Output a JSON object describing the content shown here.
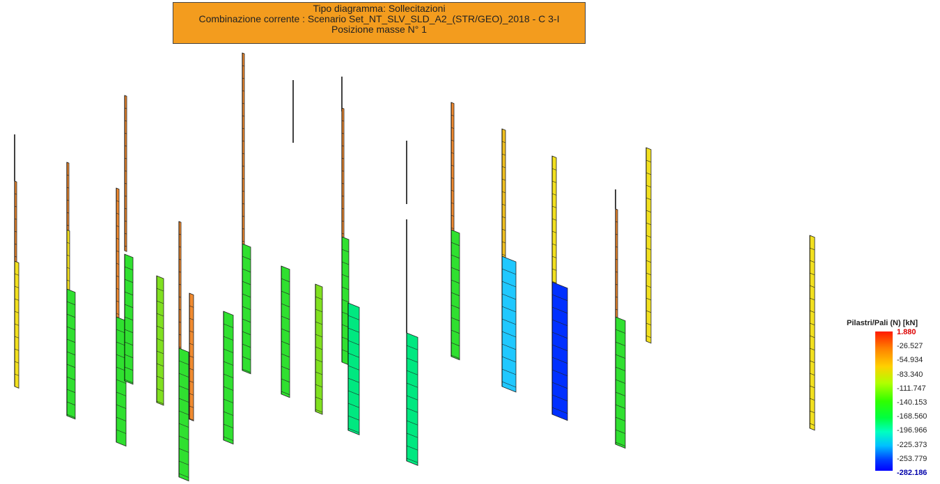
{
  "header": {
    "lines": [
      "Tipo diagramma: Sollecitazioni",
      "Combinazione corrente : Scenario Set_NT_SLV_SLD_A2_(STR/GEO)_2018 - C 3-I",
      "Posizione masse N° 1"
    ]
  },
  "legend": {
    "title": "Pilastri/Pali (N) [kN]",
    "labels": [
      "1.880",
      "-26.527",
      "-54.934",
      "-83.340",
      "-111.747",
      "-140.153",
      "-168.560",
      "-196.966",
      "-225.373",
      "-253.779",
      "-282.186"
    ]
  }
}
